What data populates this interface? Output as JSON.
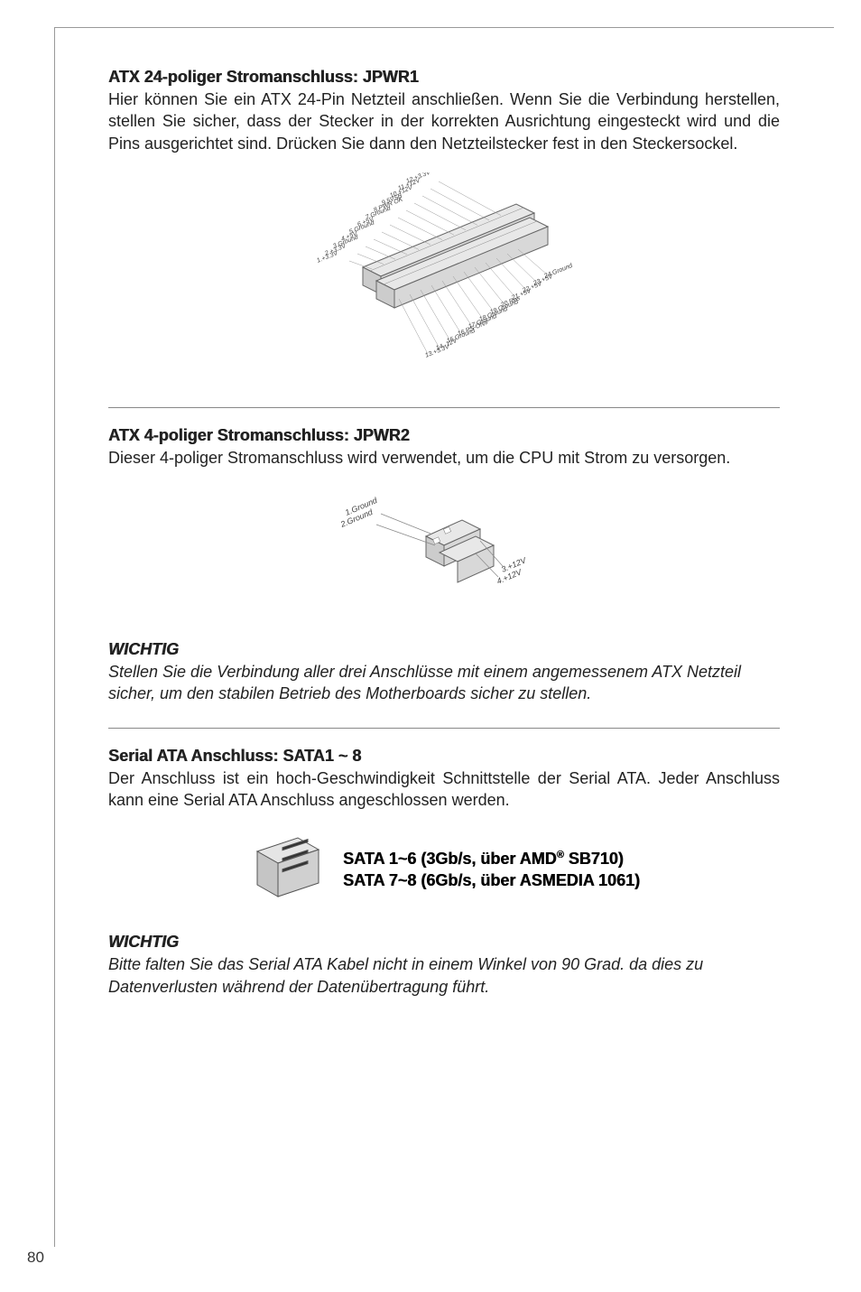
{
  "section1": {
    "heading": "ATX 24-poliger Stromanschluss: JPWR1",
    "body": "Hier können Sie ein ATX 24-Pin Netzteil anschließen. Wenn Sie die Verbindung herstellen, stellen Sie sicher, dass der Stecker in der korrekten Ausrichtung eingesteckt wird und die Pins ausgerichtet sind. Drücken Sie dann den Netzteilstecker fest in den Steckersockel."
  },
  "jpwr1_pins_left": [
    "12.+3.3V",
    "11.+12V",
    "10.+12V",
    "9.5VSB",
    "8.PWR OK",
    "7.Ground",
    "6.+5V",
    "5.Ground",
    "4.+5V",
    "3.Ground",
    "2.+3.3V",
    "1.+3.3V"
  ],
  "jpwr1_pins_right": [
    "24.Ground",
    "23.+5V",
    "22.+5V",
    "21.+5V",
    "20.Res",
    "19.Ground",
    "18.Ground",
    "17.Ground",
    "16.PS-ON#",
    "15.Ground",
    "14.-12V",
    "13.+3.3V"
  ],
  "section2": {
    "heading": "ATX 4-poliger Stromanschluss: JPWR2",
    "body": "Dieser 4-poliger Stromanschluss wird verwendet, um die CPU mit Strom zu versorgen."
  },
  "jpwr2_pins_left": [
    "1.Ground",
    "2.Ground"
  ],
  "jpwr2_pins_right": [
    "3.+12V",
    "4.+12V"
  ],
  "wichtig1": {
    "heading": "WICHTIG",
    "body": "Stellen Sie die Verbindung aller drei Anschlüsse mit einem angemessenem ATX Netzteil sicher, um den stabilen Betrieb des Motherboards sicher zu stellen."
  },
  "section3": {
    "heading": "Serial ATA Anschluss: SATA1 ~ 8",
    "body": "Der Anschluss ist ein hoch-Geschwindigkeit Schnittstelle der Serial ATA. Jeder Anschluss kann eine Serial ATA Anschluss angeschlossen werden."
  },
  "sata": {
    "line1_pre": "SATA 1~6 (3Gb/s, über AMD",
    "line1_sup": "®",
    "line1_post": " SB710)",
    "line2": "SATA 7~8 (6Gb/s, über ASMEDIA 1061)"
  },
  "wichtig2": {
    "heading": "WICHTIG",
    "body": "Bitte falten Sie das Serial ATA Kabel nicht in einem Winkel von 90 Grad. da dies zu Datenverlusten während der Datenübertragung führt."
  },
  "page_number": "80",
  "colors": {
    "connector_fill": "#f5f5f5",
    "connector_stroke": "#666",
    "line_color": "#888"
  }
}
